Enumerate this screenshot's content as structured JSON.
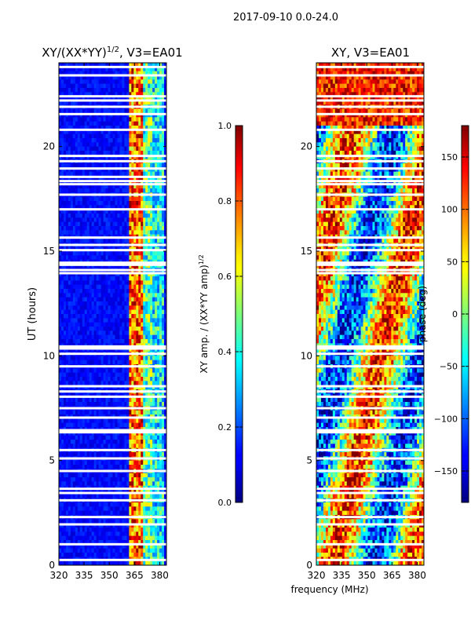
{
  "figure_title": "2017-09-10 0.0-24.0",
  "xlabel": "frequency (MHz)",
  "chart_data": [
    {
      "type": "heatmap",
      "title_text": "XY/(XX*YY)",
      "title_exponent": "1/2",
      "title_suffix": ", V3=EA01",
      "ylabel": "UT (hours)",
      "x_ticks": [
        "320",
        "335",
        "350",
        "365",
        "380"
      ],
      "x_range": [
        320,
        384
      ],
      "y_ticks": [
        "0",
        "5",
        "10",
        "15",
        "20"
      ],
      "y_range": [
        0,
        24
      ],
      "colorbar": {
        "label_text": "XY amp. / (XX*YY amp)",
        "label_exponent": "1/2",
        "range": [
          0,
          1
        ],
        "ticks": [
          "0.0",
          "0.2",
          "0.4",
          "0.6",
          "0.8",
          "1.0"
        ]
      }
    },
    {
      "type": "heatmap",
      "title_text": "XY, V3=EA01",
      "x_ticks": [
        "320",
        "335",
        "350",
        "365",
        "380"
      ],
      "x_range": [
        320,
        384
      ],
      "y_ticks": [
        "0",
        "5",
        "10",
        "15",
        "20"
      ],
      "y_range": [
        0,
        24
      ],
      "colorbar": {
        "label_text": "phase (deg)",
        "range": [
          -180,
          180
        ],
        "ticks": [
          "-150",
          "-100",
          "-50",
          "0",
          "50",
          "100",
          "150"
        ]
      }
    }
  ],
  "flagged_time_rows_hours": [
    0.25,
    1.0,
    1.95,
    2.3,
    3.1,
    3.45,
    3.65,
    4.5,
    5.1,
    5.5,
    6.35,
    6.45,
    7.05,
    7.5,
    8.05,
    8.3,
    8.55,
    9.5,
    10.1,
    10.35,
    10.45,
    13.95,
    14.1,
    14.35,
    14.45,
    15.05,
    15.3,
    15.65,
    17.0,
    17.7,
    18.2,
    18.35,
    18.55,
    18.95,
    19.3,
    19.55,
    20.8,
    21.55,
    21.9,
    22.2,
    22.4,
    23.4,
    23.8
  ]
}
